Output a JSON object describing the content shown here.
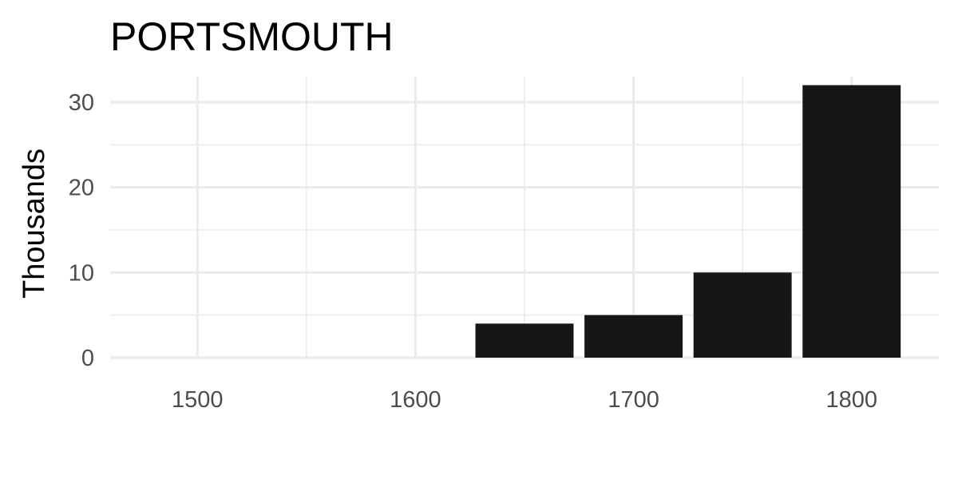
{
  "chart_data": {
    "type": "bar",
    "title": "PORTSMOUTH",
    "subtitle": "",
    "xlabel": "",
    "ylabel": "Thousands",
    "x": [
      1650,
      1700,
      1750,
      1800
    ],
    "values": [
      4,
      5,
      10,
      32
    ],
    "xlim": [
      1460,
      1840
    ],
    "ylim": [
      0,
      33
    ],
    "x_ticks": [
      1500,
      1600,
      1700,
      1800
    ],
    "y_ticks": [
      0,
      10,
      20,
      30
    ],
    "bar_width_years": 45,
    "bar_color": "#161616",
    "grid": true,
    "legend": "none"
  }
}
